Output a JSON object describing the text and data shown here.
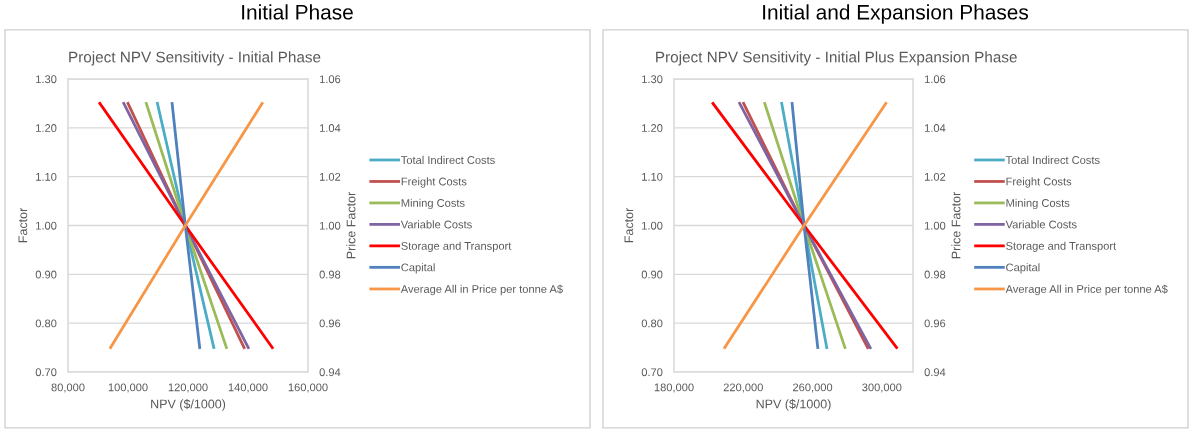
{
  "chart_data": [
    {
      "type": "line",
      "title": "Initial Phase",
      "subtitle": "Project NPV Sensitivity - Initial Phase",
      "xlabel": "NPV ($/1000)",
      "ylabel": "Factor",
      "y2label": "Price Factor",
      "xlim": [
        80000,
        160000
      ],
      "xticks": [
        {
          "value": 80000,
          "label": "80,000"
        },
        {
          "value": 100000,
          "label": "100,000"
        },
        {
          "value": 120000,
          "label": "120,000"
        },
        {
          "value": 140000,
          "label": "140,000"
        },
        {
          "value": 160000,
          "label": "160,000"
        }
      ],
      "ylim": [
        0.7,
        1.3
      ],
      "yticks": [
        {
          "value": 0.7,
          "label": "0.70"
        },
        {
          "value": 0.8,
          "label": "0.80"
        },
        {
          "value": 0.9,
          "label": "0.90"
        },
        {
          "value": 1.0,
          "label": "1.00"
        },
        {
          "value": 1.1,
          "label": "1.10"
        },
        {
          "value": 1.2,
          "label": "1.20"
        },
        {
          "value": 1.3,
          "label": "1.30"
        }
      ],
      "y2lim": [
        0.94,
        1.06
      ],
      "y2ticks": [
        {
          "value": 0.94,
          "label": "0.94"
        },
        {
          "value": 0.96,
          "label": "0.96"
        },
        {
          "value": 0.98,
          "label": "0.98"
        },
        {
          "value": 1.0,
          "label": "1.00"
        },
        {
          "value": 1.02,
          "label": "1.02"
        },
        {
          "value": 1.04,
          "label": "1.04"
        },
        {
          "value": 1.06,
          "label": "1.06"
        }
      ],
      "grid": "y",
      "legend": "right",
      "marker": "none",
      "line_style": "solid",
      "series": [
        {
          "name": "Total Indirect Costs",
          "color": "#4bacc6",
          "x": [
            109800,
            119100,
            128600
          ],
          "values": [
            1.25,
            1.0,
            0.75
          ]
        },
        {
          "name": "Freight Costs",
          "color": "#c0504d",
          "x": [
            100000,
            119100,
            138700
          ],
          "values": [
            1.25,
            1.0,
            0.75
          ]
        },
        {
          "name": "Mining Costs",
          "color": "#9bbb59",
          "x": [
            106100,
            119100,
            132800
          ],
          "values": [
            1.25,
            1.0,
            0.75
          ]
        },
        {
          "name": "Variable Costs",
          "color": "#8064a2",
          "x": [
            98600,
            119100,
            140100
          ],
          "values": [
            1.25,
            1.0,
            0.75
          ]
        },
        {
          "name": "Storage and Transport",
          "color": "#ff0000",
          "x": [
            90600,
            119100,
            148100
          ],
          "values": [
            1.25,
            1.0,
            0.75
          ]
        },
        {
          "name": "Capital",
          "color": "#4f81bd",
          "x": [
            114700,
            119100,
            123900
          ],
          "values": [
            1.25,
            1.0,
            0.75
          ]
        },
        {
          "name": "Average All in Price per tonne A$",
          "color": "#f79646",
          "axis": "y2",
          "x": [
            94200,
            119100,
            144700
          ],
          "values": [
            0.95,
            1.0,
            1.05
          ]
        }
      ]
    },
    {
      "type": "line",
      "title": "Initial and Expansion Phases",
      "subtitle": "Project NPV Sensitivity - Initial Plus Expansion Phase",
      "xlabel": "NPV ($/1000)",
      "ylabel": "Factor",
      "y2label": "Price Factor",
      "xlim": [
        180000,
        318000
      ],
      "xticks": [
        {
          "value": 180000,
          "label": "180,000"
        },
        {
          "value": 220000,
          "label": "220,000"
        },
        {
          "value": 260000,
          "label": "260,000"
        },
        {
          "value": 300000,
          "label": "300,000"
        }
      ],
      "ylim": [
        0.7,
        1.3
      ],
      "yticks": [
        {
          "value": 0.7,
          "label": "0.70"
        },
        {
          "value": 0.8,
          "label": "0.80"
        },
        {
          "value": 0.9,
          "label": "0.90"
        },
        {
          "value": 1.0,
          "label": "1.00"
        },
        {
          "value": 1.1,
          "label": "1.10"
        },
        {
          "value": 1.2,
          "label": "1.20"
        },
        {
          "value": 1.3,
          "label": "1.30"
        }
      ],
      "y2lim": [
        0.94,
        1.06
      ],
      "y2ticks": [
        {
          "value": 0.94,
          "label": "0.94"
        },
        {
          "value": 0.96,
          "label": "0.96"
        },
        {
          "value": 0.98,
          "label": "0.98"
        },
        {
          "value": 1.0,
          "label": "1.00"
        },
        {
          "value": 1.02,
          "label": "1.02"
        },
        {
          "value": 1.04,
          "label": "1.04"
        },
        {
          "value": 1.06,
          "label": "1.06"
        }
      ],
      "grid": "y",
      "legend": "right",
      "marker": "none",
      "line_style": "solid",
      "series": [
        {
          "name": "Total Indirect Costs",
          "color": "#4bacc6",
          "x": [
            242200,
            255100,
            268200
          ],
          "values": [
            1.25,
            1.0,
            0.75
          ]
        },
        {
          "name": "Freight Costs",
          "color": "#c0504d",
          "x": [
            220200,
            255100,
            291800
          ],
          "values": [
            1.25,
            1.0,
            0.75
          ]
        },
        {
          "name": "Mining Costs",
          "color": "#9bbb59",
          "x": [
            232400,
            255100,
            278700
          ],
          "values": [
            1.25,
            1.0,
            0.75
          ]
        },
        {
          "name": "Variable Costs",
          "color": "#8064a2",
          "x": [
            217900,
            255100,
            293300
          ],
          "values": [
            1.25,
            1.0,
            0.75
          ]
        },
        {
          "name": "Storage and Transport",
          "color": "#ff0000",
          "x": [
            202500,
            255100,
            308500
          ],
          "values": [
            1.25,
            1.0,
            0.75
          ]
        },
        {
          "name": "Capital",
          "color": "#4f81bd",
          "x": [
            248200,
            255100,
            263000
          ],
          "values": [
            1.25,
            1.0,
            0.75
          ]
        },
        {
          "name": "Average All in Price per tonne A$",
          "color": "#f79646",
          "axis": "y2",
          "x": [
            209300,
            255100,
            302300
          ],
          "values": [
            0.95,
            1.0,
            1.05
          ]
        }
      ]
    }
  ]
}
